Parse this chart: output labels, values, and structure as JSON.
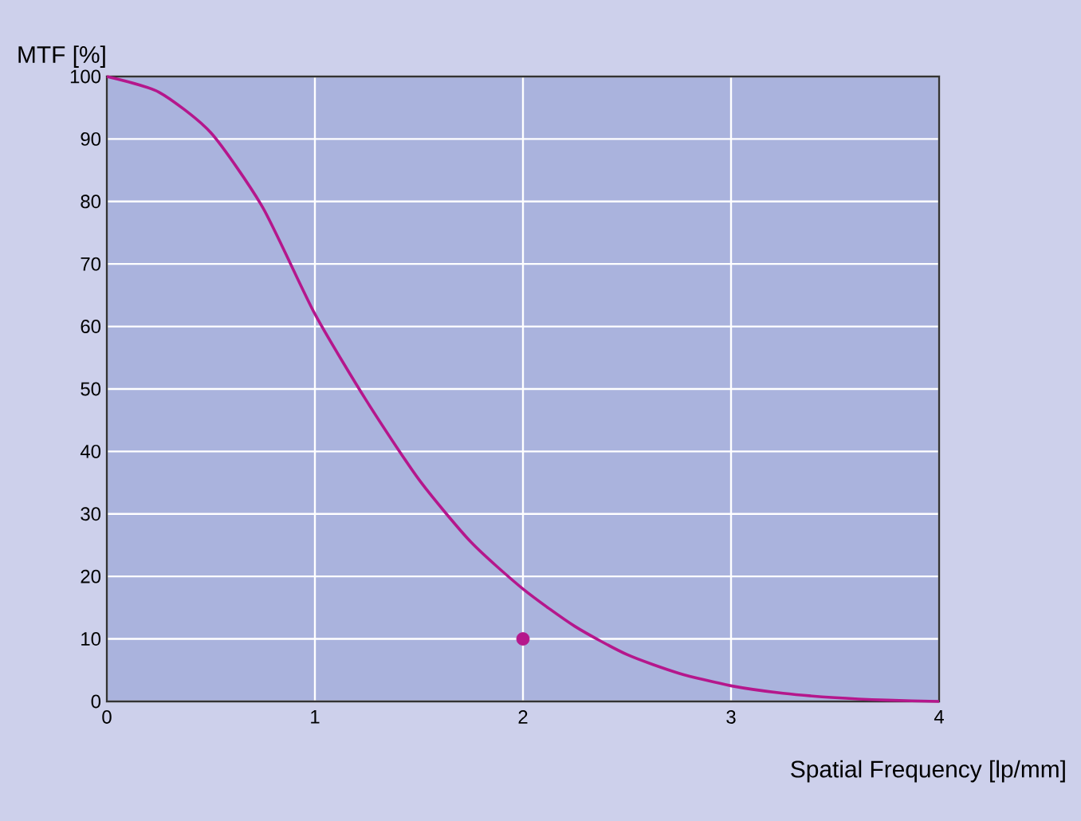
{
  "chart_data": {
    "type": "line",
    "xlabel": "Spatial Frequency [lp/mm]",
    "ylabel": "MTF [%]",
    "xlim": [
      0,
      4
    ],
    "ylim": [
      0,
      100
    ],
    "xticks": [
      0,
      1,
      2,
      3,
      4
    ],
    "yticks": [
      0,
      10,
      20,
      30,
      40,
      50,
      60,
      70,
      80,
      90,
      100
    ],
    "grid": true,
    "line_style": "solid",
    "series": [
      {
        "color": "#b5178c",
        "x": [
          0,
          0.25,
          0.5,
          0.75,
          1,
          1.25,
          1.5,
          1.75,
          2,
          2.25,
          2.5,
          2.75,
          3,
          3.25,
          3.5,
          3.75,
          4
        ],
        "values": [
          100,
          97.5,
          91,
          79,
          62,
          48,
          35.5,
          25.5,
          18,
          12,
          7.5,
          4.5,
          2.5,
          1.3,
          0.6,
          0.2,
          0
        ]
      },
      {
        "type": "scatter",
        "color": "#b5178c",
        "x": [
          2
        ],
        "values": [
          10
        ]
      }
    ]
  }
}
